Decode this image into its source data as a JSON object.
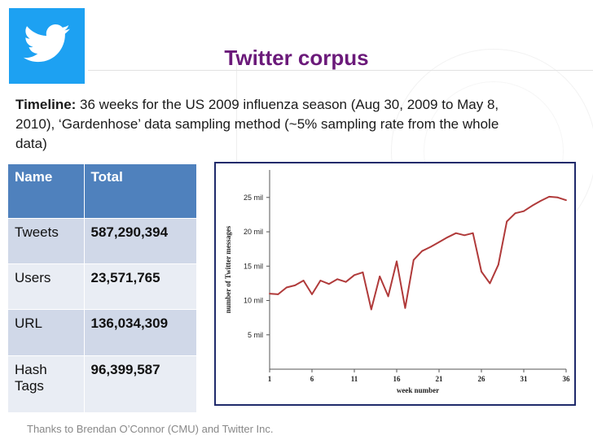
{
  "slide": {
    "title": "Twitter corpus",
    "timeline_label": "Timeline:",
    "timeline_text": " 36 weeks for the US 2009 influenza season (Aug 30, 2009 to May 8, 2010), ‘Gardenhose’ data sampling method (~5% sampling rate from the whole data)",
    "footer": "Thanks to Brendan O’Connor (CMU) and Twitter Inc.",
    "logo": {
      "icon": "twitter-bird-icon",
      "color": "#1da1f2"
    },
    "title_color": "#6b1a7a"
  },
  "table": {
    "headers": [
      "Name",
      "Total"
    ],
    "rows": [
      {
        "name": "Tweets",
        "total": "587,290,394"
      },
      {
        "name": "Users",
        "total": "23,571,765"
      },
      {
        "name": "URL",
        "total": "136,034,309"
      },
      {
        "name": "Hash Tags",
        "total": "96,399,587"
      }
    ],
    "header_color": "#4f81bd"
  },
  "chart_data": {
    "type": "line",
    "title": "",
    "xlabel": "week number",
    "ylabel": "number of Twitter messages",
    "x_ticks": [
      "1",
      "6",
      "11",
      "16",
      "21",
      "26",
      "31",
      "36"
    ],
    "y_ticks": [
      "5 mil",
      "10 mil",
      "15 mil",
      "20 mil",
      "25 mil"
    ],
    "xlim": [
      1,
      36
    ],
    "ylim": [
      0,
      29
    ],
    "grid": false,
    "series": [
      {
        "color": "#b03a3a",
        "x": [
          1,
          2,
          3,
          4,
          5,
          6,
          7,
          8,
          9,
          10,
          11,
          12,
          13,
          14,
          15,
          16,
          17,
          18,
          19,
          20,
          21,
          22,
          23,
          24,
          25,
          26,
          27,
          28,
          29,
          30,
          31,
          32,
          33,
          34,
          35,
          36
        ],
        "y": [
          11.0,
          10.9,
          11.9,
          12.2,
          12.9,
          10.9,
          12.9,
          12.4,
          13.1,
          12.7,
          13.7,
          14.1,
          8.7,
          13.5,
          10.6,
          15.7,
          8.9,
          15.9,
          17.2,
          17.8,
          18.5,
          19.2,
          19.8,
          19.5,
          19.8,
          14.2,
          12.5,
          15.2,
          21.5,
          22.7,
          23.0,
          23.8,
          24.5,
          25.1,
          25.0,
          24.6
        ]
      }
    ]
  }
}
